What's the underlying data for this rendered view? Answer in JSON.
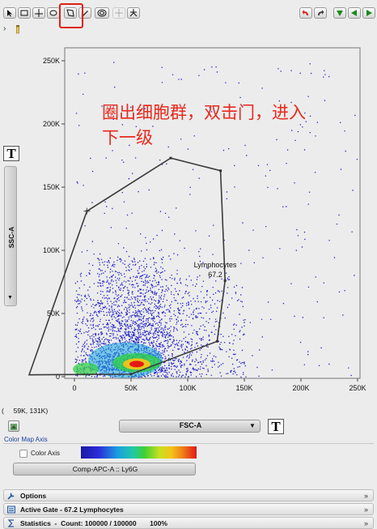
{
  "toolbar": {
    "left_icons": [
      "pointer-icon",
      "rectangle-gate-icon",
      "quadrant-icon",
      "ellipse-gate-icon",
      "polygon-gate-icon",
      "freehand-gate-icon",
      "spider-gate-icon",
      "cross-gate-icon",
      "branch-gate-icon"
    ],
    "right_icons": [
      "undo-icon",
      "redo-icon",
      "down-arrow-icon",
      "left-arrow-icon",
      "right-arrow-icon"
    ]
  },
  "annotation": {
    "line1": "圈出细胞群，双击门，进入",
    "line2": "下一级",
    "color": "#e8291c",
    "highlight_color": "#e02010"
  },
  "plot": {
    "y_axis_label": "SSC-A",
    "y_ticks": [
      "250K",
      "200K",
      "150K",
      "100K",
      "50K",
      "0"
    ],
    "x_ticks": [
      "0",
      "50K",
      "100K",
      "150K",
      "200K",
      "250K"
    ],
    "gate_name": "Lymphocytes",
    "gate_pct": "67.2",
    "gate_vertices": [
      [
        11000,
        131000
      ],
      [
        85000,
        173000
      ],
      [
        129000,
        163000
      ],
      [
        133000,
        76000
      ],
      [
        126000,
        28000
      ],
      [
        50000,
        2000
      ],
      [
        -40000,
        1500
      ]
    ]
  },
  "cursor_readout": "(     59K, 131K)",
  "x_param": "FSC-A",
  "t_label": "T",
  "color_map": {
    "title": "Color Map Axis",
    "checkbox_label": "Color Axis",
    "param": "Comp-APC-A :: Ly6G"
  },
  "panels": {
    "options": "Options",
    "active_gate": "Active Gate  -  67.2 Lymphocytes",
    "statistics": "Statistics  -  Count: 100000 / 100000       100%"
  }
}
